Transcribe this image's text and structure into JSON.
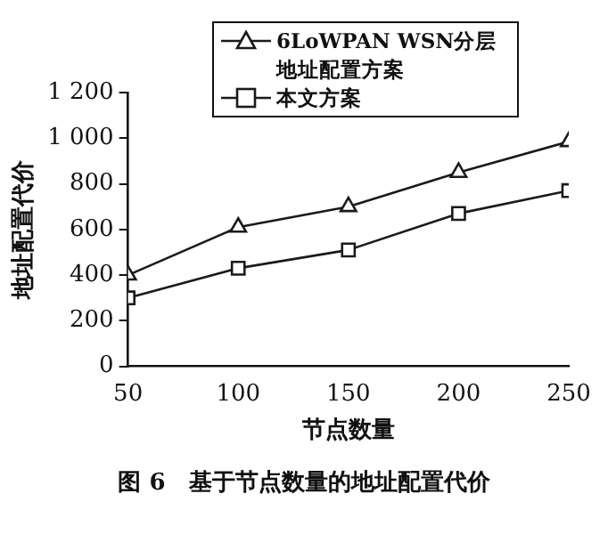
{
  "chart_data": {
    "type": "line",
    "title": "图 6　基于节点数量的地址配置代价",
    "xlabel": "节点数量",
    "ylabel": "地址配置代价",
    "x": [
      50,
      100,
      150,
      200,
      250
    ],
    "xlim": [
      50,
      250
    ],
    "xticks": [
      50,
      100,
      150,
      200,
      250
    ],
    "ylim": [
      0,
      1200
    ],
    "yticks": [
      0,
      200,
      400,
      600,
      800,
      {
        "value": 1000,
        "label": "1 000"
      },
      {
        "value": 1200,
        "label": "1 200"
      }
    ],
    "grid": false,
    "legend": "top right",
    "line_style": "solid",
    "series": [
      {
        "name": "6LoWPAN WSN分层地址配置方案",
        "color": "#1a1a1a",
        "marker": "triangle",
        "values": [
          400,
          610,
          700,
          850,
          985
        ]
      },
      {
        "name": "本文方案",
        "color": "#1a1a1a",
        "marker": "square",
        "values": [
          300,
          430,
          510,
          670,
          770
        ]
      }
    ]
  }
}
